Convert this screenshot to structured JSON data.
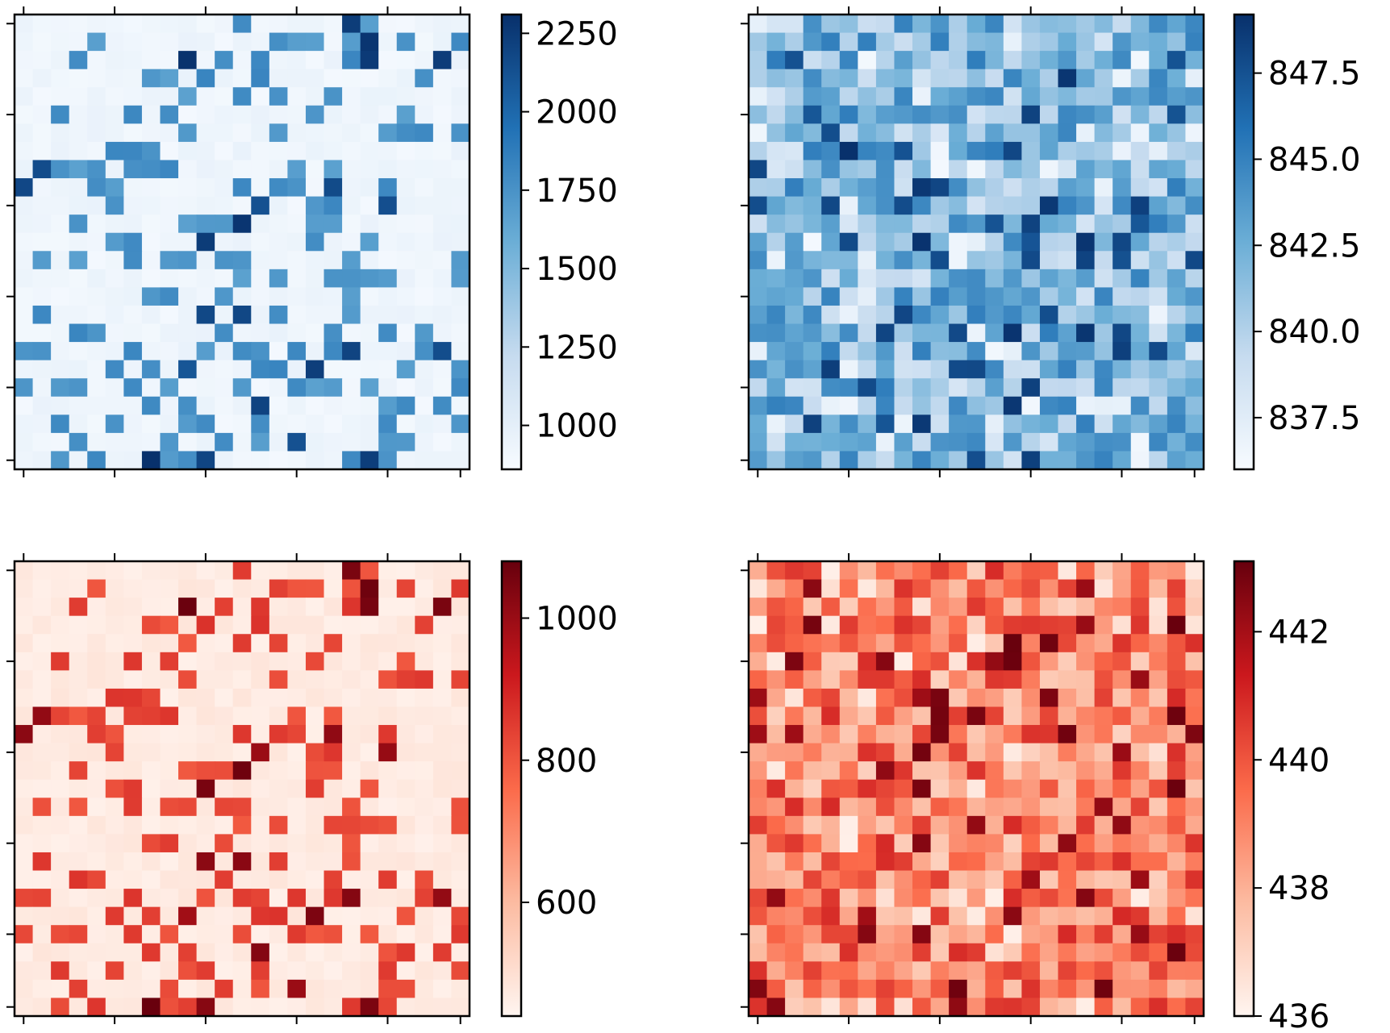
{
  "figure": {
    "background": "#ffffff",
    "cell_grid": "25x25",
    "ticks_labeled": false
  },
  "chart_data": [
    {
      "type": "heatmap",
      "panel": "top-left",
      "colormap": "Blues",
      "colors": [
        "#f7fbff",
        "#c6dbef",
        "#6baed6",
        "#2171b5",
        "#08306b"
      ],
      "pattern": "sparse",
      "seed": 17,
      "rows": 25,
      "cols": 25,
      "vmin": 860,
      "vmax": 2310,
      "colorbar_ticks": [
        1000,
        1250,
        1500,
        1750,
        2000,
        2250
      ],
      "colorbar_tick_labels": [
        "1000",
        "1250",
        "1500",
        "1750",
        "2000",
        "2250"
      ],
      "title": "",
      "xlabel": "",
      "ylabel": ""
    },
    {
      "type": "heatmap",
      "panel": "top-right",
      "colormap": "Blues",
      "colors": [
        "#f7fbff",
        "#c6dbef",
        "#6baed6",
        "#2171b5",
        "#08306b"
      ],
      "pattern": "dense",
      "seed": 31,
      "rows": 25,
      "cols": 25,
      "vmin": 836.0,
      "vmax": 849.2,
      "colorbar_ticks": [
        837.5,
        840.0,
        842.5,
        845.0,
        847.5
      ],
      "colorbar_tick_labels": [
        "837.5",
        "840.0",
        "842.5",
        "845.0",
        "847.5"
      ],
      "title": "",
      "xlabel": "",
      "ylabel": ""
    },
    {
      "type": "heatmap",
      "panel": "bottom-left",
      "colormap": "Reds",
      "colors": [
        "#fff5f0",
        "#fcbba1",
        "#fb6a4a",
        "#cb181d",
        "#67000d"
      ],
      "pattern": "sparse",
      "seed": 17,
      "rows": 25,
      "cols": 25,
      "vmin": 440,
      "vmax": 1080,
      "colorbar_ticks": [
        600,
        800,
        1000
      ],
      "colorbar_tick_labels": [
        "600",
        "800",
        "1000"
      ],
      "title": "",
      "xlabel": "",
      "ylabel": ""
    },
    {
      "type": "heatmap",
      "panel": "bottom-right",
      "colormap": "Reds",
      "colors": [
        "#fff5f0",
        "#fcbba1",
        "#fb6a4a",
        "#cb181d",
        "#67000d"
      ],
      "pattern": "dense",
      "seed": 57,
      "rows": 25,
      "cols": 25,
      "vmin": 436,
      "vmax": 443.1,
      "colorbar_ticks": [
        436,
        438,
        440,
        442
      ],
      "colorbar_tick_labels": [
        "436",
        "438",
        "440",
        "442"
      ],
      "title": "",
      "xlabel": "",
      "ylabel": ""
    }
  ]
}
